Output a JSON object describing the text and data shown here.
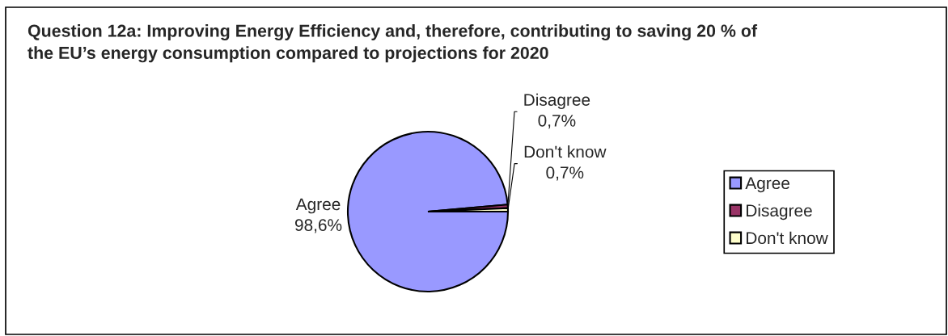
{
  "chart_data": {
    "type": "pie",
    "title": "Question 12a: Improving Energy Efficiency and, therefore, contributing to saving 20 % of\nthe EU’s energy consumption compared to projections for 2020",
    "categories": [
      "Agree",
      "Disagree",
      "Don't know"
    ],
    "values": [
      98.6,
      0.7,
      0.7
    ],
    "colors": [
      "#9999ff",
      "#993366",
      "#ffffcc"
    ],
    "value_labels": [
      "98,6%",
      "0,7%",
      "0,7%"
    ],
    "legend": "right"
  }
}
